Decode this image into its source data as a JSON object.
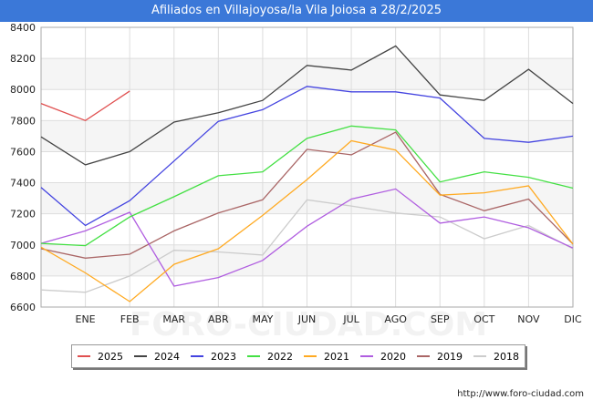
{
  "chart_data": {
    "type": "line",
    "title": "Afiliados en Villajoyosa/la Vila Joiosa a 28/2/2025",
    "categories": [
      "",
      "ENE",
      "FEB",
      "MAR",
      "ABR",
      "MAY",
      "JUN",
      "JUL",
      "AGO",
      "SEP",
      "OCT",
      "NOV",
      "DIC"
    ],
    "ylim": [
      6600,
      8400
    ],
    "yticks": [
      6600,
      6800,
      7000,
      7200,
      7400,
      7600,
      7800,
      8000,
      8200,
      8400
    ],
    "grid": true,
    "legend_position": "bottom",
    "series": [
      {
        "name": "2025",
        "color": "#e05050",
        "values": [
          7910,
          7800,
          7990,
          null,
          null,
          null,
          null,
          null,
          null,
          null,
          null,
          null,
          null
        ]
      },
      {
        "name": "2024",
        "color": "#444444",
        "values": [
          7695,
          7515,
          7600,
          7790,
          7850,
          7930,
          8155,
          8125,
          8280,
          7965,
          7930,
          8130,
          7910
        ]
      },
      {
        "name": "2023",
        "color": "#4444e0",
        "values": [
          7370,
          7125,
          7285,
          7540,
          7795,
          7870,
          8020,
          7985,
          7985,
          7945,
          7685,
          7660,
          7700
        ]
      },
      {
        "name": "2022",
        "color": "#44e044",
        "values": [
          7010,
          6995,
          7180,
          7310,
          7445,
          7470,
          7685,
          7765,
          7740,
          7405,
          7470,
          7435,
          7365
        ]
      },
      {
        "name": "2021",
        "color": "#ffaa22",
        "values": [
          6985,
          6820,
          6635,
          6875,
          6975,
          7190,
          7420,
          7670,
          7610,
          7320,
          7335,
          7380,
          7005
        ]
      },
      {
        "name": "2020",
        "color": "#b05ee0",
        "values": [
          7010,
          7090,
          7210,
          6735,
          6790,
          6900,
          7120,
          7295,
          7360,
          7140,
          7180,
          7110,
          6980
        ]
      },
      {
        "name": "2019",
        "color": "#aa6666",
        "values": [
          6975,
          6915,
          6940,
          7090,
          7205,
          7290,
          7615,
          7580,
          7725,
          7325,
          7220,
          7295,
          7005
        ]
      },
      {
        "name": "2018",
        "color": "#cccccc",
        "values": [
          6710,
          6695,
          6800,
          6965,
          6955,
          6935,
          7290,
          7250,
          7205,
          7180,
          7040,
          7125,
          6975
        ]
      }
    ],
    "watermark": "FORO-CIUDAD.COM"
  },
  "footer": {
    "url": "http://www.foro-ciudad.com"
  }
}
